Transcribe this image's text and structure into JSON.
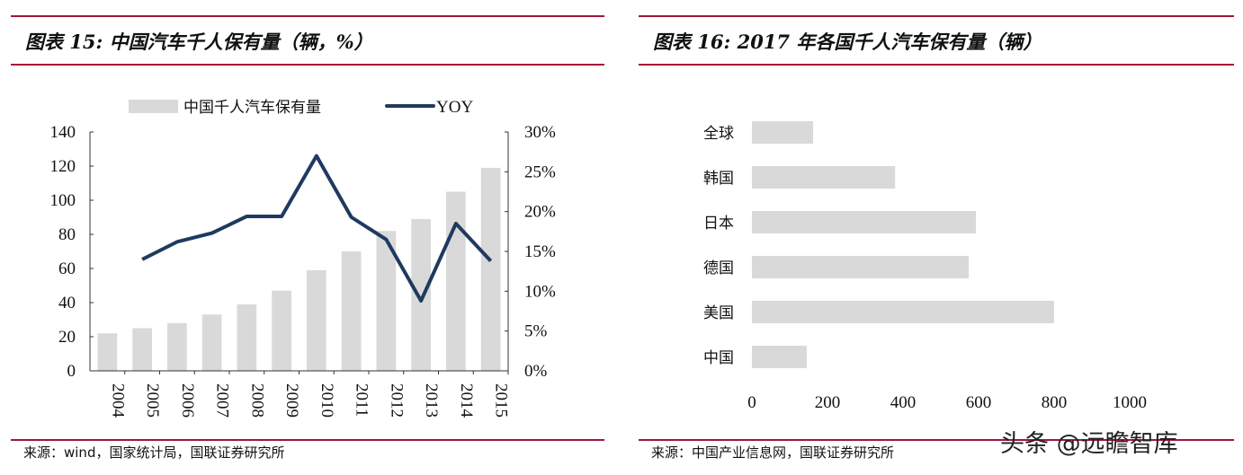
{
  "panels": [
    {
      "title": "图表 15:  中国汽车千人保有量（辆，%）",
      "source": "来源：wind，国家统计局，国联证券研究所"
    },
    {
      "title": "图表 16:  2017 年各国千人汽车保有量（辆）",
      "source": "来源：中国产业信息网，国联证券研究所"
    }
  ],
  "watermark": "头条 @远瞻智库",
  "colors": {
    "rule": "#a3163a",
    "bar": "#d9d9d9",
    "line": "#1f3a5f"
  },
  "chart_data": [
    {
      "type": "bar+line",
      "categories": [
        "2004",
        "2005",
        "2006",
        "2007",
        "2008",
        "2009",
        "2010",
        "2011",
        "2012",
        "2013",
        "2014",
        "2015"
      ],
      "series": [
        {
          "name": "中国千人汽车保有量",
          "type": "bar",
          "axis": "left",
          "values": [
            22,
            25,
            28,
            33,
            39,
            47,
            59,
            70,
            82,
            89,
            105,
            119
          ]
        },
        {
          "name": "YOY",
          "type": "line",
          "axis": "right",
          "values": [
            null,
            14.0,
            16.2,
            17.3,
            19.4,
            19.4,
            27.0,
            19.3,
            16.5,
            8.8,
            18.5,
            13.8
          ]
        }
      ],
      "yleft": {
        "range": [
          0,
          140
        ],
        "ticks": [
          "0",
          "20",
          "40",
          "60",
          "80",
          "100",
          "120",
          "140"
        ]
      },
      "yright": {
        "range": [
          0,
          30
        ],
        "ticks": [
          "0%",
          "5%",
          "10%",
          "15%",
          "20%",
          "25%",
          "30%"
        ]
      },
      "legend": "top",
      "grid": false
    },
    {
      "type": "bar-horizontal",
      "categories": [
        "全球",
        "韩国",
        "日本",
        "德国",
        "美国",
        "中国"
      ],
      "values": [
        162,
        379,
        593,
        574,
        800,
        145
      ],
      "xrange": [
        0,
        1000
      ],
      "xticks": [
        "0",
        "200",
        "400",
        "600",
        "800",
        "1000"
      ],
      "grid": false
    }
  ]
}
